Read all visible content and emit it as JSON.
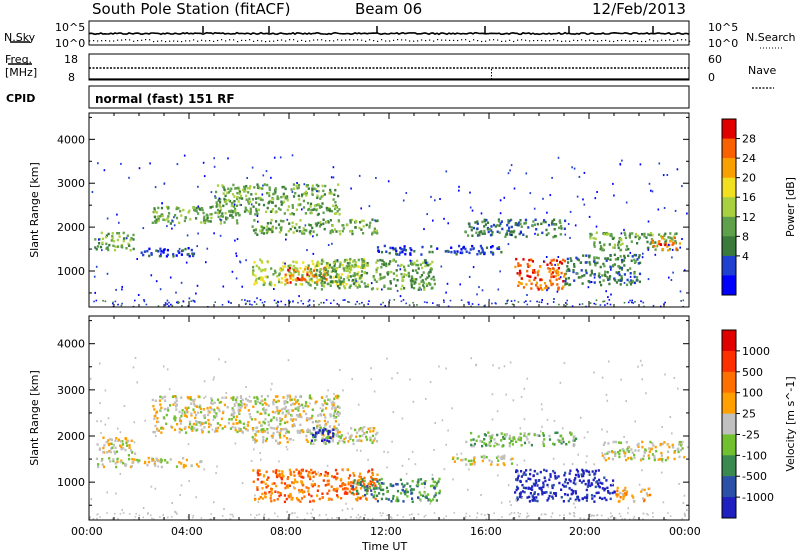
{
  "header": {
    "station": "South Pole Station (fitACF)",
    "beam": "Beam 06",
    "date": "12/Feb/2013"
  },
  "noise_panel": {
    "left_label": "N.Sky",
    "right_label": "N.Search",
    "ticks": [
      "10^5",
      "10^0"
    ]
  },
  "freq_panel": {
    "left_label_1": "Freq.",
    "left_label_2": "[MHz]",
    "left_ticks": [
      "18",
      "8"
    ],
    "right_label": "Nave",
    "right_ticks": [
      "60",
      "0"
    ]
  },
  "cpid": {
    "label": "CPID",
    "value": "normal (fast) 151 RF"
  },
  "x_axis": {
    "label": "Time UT",
    "ticks": [
      "00:00",
      "04:00",
      "08:00",
      "12:00",
      "16:00",
      "20:00",
      "00:00"
    ]
  },
  "colors": {
    "power": [
      "#0000ff",
      "#2040d0",
      "#3a7a3a",
      "#5fa04a",
      "#a8d040",
      "#f0e020",
      "#f8a000",
      "#f86000",
      "#e00000"
    ],
    "velocity": [
      "#2020c0",
      "#2a50a8",
      "#3a8a50",
      "#70c030",
      "#c0c0c0",
      "#ffa000",
      "#ff7000",
      "#ff3000",
      "#e00000"
    ]
  },
  "chart_data": [
    {
      "type": "heatmap",
      "ylabel": "Slant Range [km]",
      "xlabel": "Time UT",
      "x_ticks": [
        "00:00",
        "04:00",
        "08:00",
        "12:00",
        "16:00",
        "20:00",
        "00:00"
      ],
      "xlim_hours": [
        0,
        24
      ],
      "ylim_km": [
        180,
        4600
      ],
      "y_ticks": [
        1000,
        2000,
        3000,
        4000
      ],
      "colorbar": {
        "label": "Power [dB]",
        "ticks": [
          "28",
          "24",
          "20",
          "16",
          "12",
          "8",
          "4"
        ]
      },
      "echo_regions": [
        {
          "t_start": 0.2,
          "t_end": 1.8,
          "r_start": 1500,
          "r_end": 1900,
          "level": 3
        },
        {
          "t_start": 1.8,
          "t_end": 4.2,
          "r_start": 1350,
          "r_end": 1550,
          "level": 1
        },
        {
          "t_start": 2.5,
          "t_end": 6.0,
          "r_start": 2100,
          "r_end": 2500,
          "level": 3
        },
        {
          "t_start": 5.0,
          "t_end": 10.0,
          "r_start": 2300,
          "r_end": 3000,
          "level": 3
        },
        {
          "t_start": 6.5,
          "t_end": 11.5,
          "r_start": 1850,
          "r_end": 2200,
          "level": 3
        },
        {
          "t_start": 6.5,
          "t_end": 11.0,
          "r_start": 700,
          "r_end": 1300,
          "level": 4
        },
        {
          "t_start": 7.8,
          "t_end": 9.5,
          "r_start": 750,
          "r_end": 1100,
          "level": 7
        },
        {
          "t_start": 9.0,
          "t_end": 13.8,
          "r_start": 600,
          "r_end": 1300,
          "level": 3
        },
        {
          "t_start": 11.5,
          "t_end": 16.5,
          "r_start": 1400,
          "r_end": 1600,
          "level": 1
        },
        {
          "t_start": 15.0,
          "t_end": 19.0,
          "r_start": 1800,
          "r_end": 2200,
          "level": 2
        },
        {
          "t_start": 17.0,
          "t_end": 19.0,
          "r_start": 600,
          "r_end": 1300,
          "level": 7
        },
        {
          "t_start": 19.0,
          "t_end": 22.0,
          "r_start": 700,
          "r_end": 1400,
          "level": 2
        },
        {
          "t_start": 20.0,
          "t_end": 23.5,
          "r_start": 1500,
          "r_end": 1900,
          "level": 3
        },
        {
          "t_start": 22.5,
          "t_end": 23.6,
          "r_start": 1500,
          "r_end": 1800,
          "level": 7
        }
      ]
    },
    {
      "type": "heatmap",
      "ylabel": "Slant Range [km]",
      "xlabel": "Time UT",
      "x_ticks": [
        "00:00",
        "04:00",
        "08:00",
        "12:00",
        "16:00",
        "20:00",
        "00:00"
      ],
      "xlim_hours": [
        0,
        24
      ],
      "ylim_km": [
        180,
        4600
      ],
      "y_ticks": [
        1000,
        2000,
        3000,
        4000
      ],
      "colorbar": {
        "label": "Velocity [m s^-1]",
        "ticks": [
          "1000",
          "500",
          "100",
          "25",
          "-25",
          "-100",
          "-500",
          "-1000"
        ]
      },
      "echo_regions": [
        {
          "t_start": 0.2,
          "t_end": 4.5,
          "r_start": 1350,
          "r_end": 1550,
          "level": 4
        },
        {
          "t_start": 0.2,
          "t_end": 1.8,
          "r_start": 1600,
          "r_end": 2000,
          "level": 4
        },
        {
          "t_start": 2.5,
          "t_end": 10.0,
          "r_start": 2100,
          "r_end": 2900,
          "level": 4
        },
        {
          "t_start": 6.5,
          "t_end": 11.5,
          "r_start": 1850,
          "r_end": 2200,
          "level": 4
        },
        {
          "t_start": 8.8,
          "t_end": 9.8,
          "r_start": 1900,
          "r_end": 2200,
          "level": 0
        },
        {
          "t_start": 6.5,
          "t_end": 11.5,
          "r_start": 600,
          "r_end": 1300,
          "level": 6
        },
        {
          "t_start": 10.5,
          "t_end": 14.0,
          "r_start": 600,
          "r_end": 1100,
          "level": 2
        },
        {
          "t_start": 14.5,
          "t_end": 17.0,
          "r_start": 1400,
          "r_end": 1600,
          "level": 4
        },
        {
          "t_start": 15.0,
          "t_end": 19.5,
          "r_start": 1800,
          "r_end": 2100,
          "level": 3
        },
        {
          "t_start": 17.0,
          "t_end": 21.0,
          "r_start": 600,
          "r_end": 1300,
          "level": 0
        },
        {
          "t_start": 21.0,
          "t_end": 22.5,
          "r_start": 600,
          "r_end": 900,
          "level": 5
        },
        {
          "t_start": 20.5,
          "t_end": 23.8,
          "r_start": 1500,
          "r_end": 1900,
          "level": 4
        }
      ]
    }
  ]
}
